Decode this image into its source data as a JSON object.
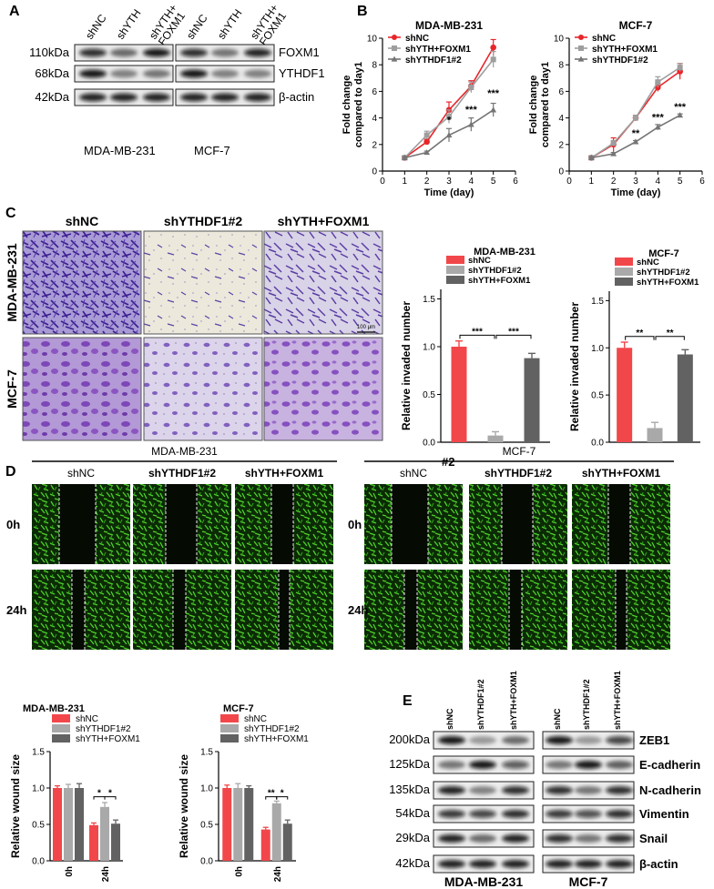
{
  "panels": {
    "A": "A",
    "B": "B",
    "C": "C",
    "D": "D",
    "E": "E"
  },
  "panelA": {
    "lanes": [
      "shNC",
      "shYTH",
      "shYTH+\nFOXM1"
    ],
    "blots": [
      {
        "kda": "110kDa",
        "name": "FOXM1"
      },
      {
        "kda": "68kDa",
        "name": "YTHDF1"
      },
      {
        "kda": "42kDa",
        "name": "β-actin"
      }
    ],
    "cell_lines": [
      "MDA-MB-231",
      "MCF-7"
    ]
  },
  "panelC": {
    "columns": [
      "shNC",
      "shYTHDF1#2",
      "shYTH+FOXM1"
    ],
    "rows": [
      "MDA-MB-231",
      "MCF-7"
    ],
    "scale": "100 μm",
    "stray": "#2"
  },
  "panelD": {
    "groups": [
      "MDA-MB-231",
      "MCF-7"
    ],
    "columns": [
      "shNC",
      "shYTHDF1#2",
      "shYTH+FOXM1"
    ],
    "times": [
      "0h",
      "24h"
    ]
  },
  "panelE": {
    "lanes": [
      "shNC",
      "shYTHDF1#2",
      "shYTH+FOXM1"
    ],
    "blots": [
      {
        "kda": "200kDa",
        "name": "ZEB1"
      },
      {
        "kda": "125kDa",
        "name": "E-cadherin"
      },
      {
        "kda": "135kDa",
        "name": "N-cadherin"
      },
      {
        "kda": "54kDa",
        "name": "Vimentin"
      },
      {
        "kda": "29kDa",
        "name": "Snail"
      },
      {
        "kda": "42kDa",
        "name": "β-actin"
      }
    ],
    "cell_lines": [
      "MDA-MB-231",
      "MCF-7"
    ]
  },
  "chart_data": [
    {
      "id": "B1",
      "type": "line",
      "title": "MDA-MB-231",
      "xlabel": "Time (day)",
      "ylabel": "Fold change\ncompared to day1",
      "xlim": [
        0,
        6
      ],
      "ylim": [
        0,
        10
      ],
      "xticks": [
        0,
        1,
        2,
        3,
        4,
        5,
        6
      ],
      "yticks": [
        0,
        2,
        4,
        6,
        8,
        10
      ],
      "x": [
        1,
        2,
        3,
        4,
        5
      ],
      "legend": "top-left",
      "series": [
        {
          "name": "shNC",
          "color": "#e8262a",
          "marker": "circle",
          "values": [
            1,
            2.2,
            4.6,
            6.4,
            9.3
          ],
          "errors": [
            0.1,
            0.2,
            0.6,
            0.4,
            0.6
          ]
        },
        {
          "name": "shYTH+FOXM1",
          "color": "#9e9e9e",
          "marker": "square",
          "values": [
            1,
            2.7,
            4.1,
            6.3,
            8.4
          ],
          "errors": [
            0.1,
            0.3,
            0.5,
            0.4,
            0.6
          ]
        },
        {
          "name": "shYTHDF1#2",
          "color": "#757575",
          "marker": "triangle",
          "values": [
            1,
            1.4,
            2.7,
            3.5,
            4.6
          ],
          "errors": [
            0.1,
            0.1,
            0.5,
            0.5,
            0.5
          ]
        }
      ],
      "annotations": [
        {
          "x": 3,
          "y": 3.6,
          "text": "*"
        },
        {
          "x": 4,
          "y": 4.4,
          "text": "***"
        },
        {
          "x": 5,
          "y": 5.6,
          "text": "***"
        }
      ]
    },
    {
      "id": "B2",
      "type": "line",
      "title": "MCF-7",
      "xlabel": "Time (day)",
      "ylabel": "Fold change\ncompared to day1",
      "xlim": [
        0,
        6
      ],
      "ylim": [
        0,
        10
      ],
      "xticks": [
        0,
        1,
        2,
        3,
        4,
        5,
        6
      ],
      "yticks": [
        0,
        2,
        4,
        6,
        8,
        10
      ],
      "x": [
        1,
        2,
        3,
        4,
        5
      ],
      "legend": "top-left",
      "series": [
        {
          "name": "shNC",
          "color": "#e8262a",
          "marker": "circle",
          "values": [
            1,
            2.0,
            4.0,
            6.3,
            7.5
          ],
          "errors": [
            0.1,
            0.5,
            0.2,
            0.3,
            0.6
          ]
        },
        {
          "name": "shYTH+FOXM1",
          "color": "#9e9e9e",
          "marker": "square",
          "values": [
            1,
            2.1,
            4.0,
            6.7,
            7.8
          ],
          "errors": [
            0.1,
            0.2,
            0.2,
            0.4,
            0.3
          ]
        },
        {
          "name": "shYTHDF1#2",
          "color": "#757575",
          "marker": "triangle",
          "values": [
            1,
            1.3,
            2.2,
            3.3,
            4.2
          ],
          "errors": [
            0.1,
            0.1,
            0.1,
            0.2,
            0.1
          ]
        }
      ],
      "annotations": [
        {
          "x": 3,
          "y": 2.6,
          "text": "**"
        },
        {
          "x": 4,
          "y": 3.8,
          "text": "***"
        },
        {
          "x": 5,
          "y": 4.6,
          "text": "***"
        }
      ]
    },
    {
      "id": "C1",
      "type": "bar",
      "title": "MDA-MB-231",
      "ylabel": "Relative invaded number",
      "ylim": [
        0,
        1.6
      ],
      "yticks": [
        0.0,
        0.5,
        1.0,
        1.5
      ],
      "categories": [
        "shNC",
        "shYTHDF1#2",
        "shYTH+FOXM1"
      ],
      "colors": [
        "#f2474a",
        "#a9a9a9",
        "#626262"
      ],
      "values": [
        1.0,
        0.07,
        0.88
      ],
      "errors": [
        0.06,
        0.04,
        0.05
      ],
      "legend": "top",
      "significance": [
        {
          "from": 0,
          "to": 1,
          "text": "***"
        },
        {
          "from": 1,
          "to": 2,
          "text": "***"
        }
      ]
    },
    {
      "id": "C2",
      "type": "bar",
      "title": "MCF-7",
      "ylabel": "Relative invaded number",
      "ylim": [
        0,
        1.6
      ],
      "yticks": [
        0.0,
        0.5,
        1.0,
        1.5
      ],
      "categories": [
        "shNC",
        "shYTHDF1#2",
        "shYTH+FOXM1"
      ],
      "colors": [
        "#f2474a",
        "#a9a9a9",
        "#626262"
      ],
      "values": [
        1.0,
        0.15,
        0.93
      ],
      "errors": [
        0.06,
        0.06,
        0.05
      ],
      "legend": "top",
      "significance": [
        {
          "from": 0,
          "to": 1,
          "text": "**"
        },
        {
          "from": 1,
          "to": 2,
          "text": "**"
        }
      ]
    },
    {
      "id": "D1",
      "type": "bar",
      "title": "MDA-MB-231",
      "ylabel": "Relative wound size",
      "ylim": [
        0,
        1.5
      ],
      "yticks": [
        0.0,
        0.5,
        1.0,
        1.5
      ],
      "categories": [
        "0h",
        "24h"
      ],
      "series": [
        {
          "name": "shNC",
          "color": "#f2474a",
          "values": [
            1.0,
            0.49
          ],
          "errors": [
            0.03,
            0.03
          ]
        },
        {
          "name": "shYTHDF1#2",
          "color": "#a9a9a9",
          "values": [
            1.0,
            0.74
          ],
          "errors": [
            0.05,
            0.06
          ]
        },
        {
          "name": "shYTH+FOXM1",
          "color": "#626262",
          "values": [
            1.0,
            0.51
          ],
          "errors": [
            0.06,
            0.05
          ]
        }
      ],
      "legend": "top",
      "significance": [
        {
          "group": 1,
          "from": 0,
          "to": 1,
          "text": "*"
        },
        {
          "group": 1,
          "from": 1,
          "to": 2,
          "text": "*"
        }
      ]
    },
    {
      "id": "D2",
      "type": "bar",
      "title": "MCF-7",
      "ylabel": "Relative wound size",
      "ylim": [
        0,
        1.5
      ],
      "yticks": [
        0.0,
        0.5,
        1.0,
        1.5
      ],
      "categories": [
        "0h",
        "24h"
      ],
      "series": [
        {
          "name": "shNC",
          "color": "#f2474a",
          "values": [
            1.0,
            0.43
          ],
          "errors": [
            0.04,
            0.03
          ]
        },
        {
          "name": "shYTHDF1#2",
          "color": "#a9a9a9",
          "values": [
            1.0,
            0.79
          ],
          "errors": [
            0.06,
            0.03
          ]
        },
        {
          "name": "shYTH+FOXM1",
          "color": "#626262",
          "values": [
            1.0,
            0.51
          ],
          "errors": [
            0.03,
            0.05
          ]
        }
      ],
      "legend": "top",
      "significance": [
        {
          "group": 1,
          "from": 0,
          "to": 1,
          "text": "**"
        },
        {
          "group": 1,
          "from": 1,
          "to": 2,
          "text": "*"
        }
      ]
    }
  ]
}
